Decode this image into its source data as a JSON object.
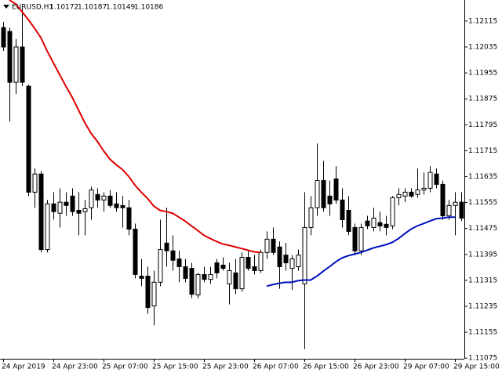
{
  "chart_data": {
    "type": "candlestick",
    "title": "EURUSD,H1",
    "header_values": [
      1.10172,
      1.10187,
      1.10149,
      1.10186
    ],
    "categories": [
      "24 Apr 2019",
      null,
      null,
      null,
      null,
      null,
      null,
      null,
      "24 Apr 23:00",
      null,
      null,
      null,
      null,
      null,
      null,
      null,
      "25 Apr 07:00",
      null,
      null,
      null,
      null,
      null,
      null,
      null,
      "25 Apr 15:00",
      null,
      null,
      null,
      null,
      null,
      null,
      null,
      "25 Apr 23:00",
      null,
      null,
      null,
      null,
      null,
      null,
      null,
      "26 Apr 07:00",
      null,
      null,
      null,
      null,
      null,
      null,
      null,
      "26 Apr 15:00",
      null,
      null,
      null,
      null,
      null,
      null,
      null,
      "26 Apr 23:00",
      null,
      null,
      null,
      null,
      null,
      null,
      null,
      "29 Apr 07:00",
      null,
      null,
      null,
      null,
      null,
      null,
      null,
      "29 Apr 15:00",
      null
    ],
    "open": [
      1.12095,
      1.12083,
      1.11926,
      1.12035,
      1.11914,
      1.11587,
      1.11643,
      1.1141,
      1.11551,
      1.11522,
      1.11556,
      1.11575,
      1.11531,
      1.11527,
      1.11539,
      1.1158,
      1.11563,
      1.11575,
      1.11551,
      1.11546,
      1.11539,
      1.11473,
      1.11328,
      1.11328,
      1.11236,
      1.11309,
      1.1143,
      1.11406,
      1.11381,
      1.11357,
      1.11352,
      1.1127,
      1.11333,
      1.11318,
      1.11369,
      1.11362,
      1.11304,
      1.11338,
      1.11289,
      1.11386,
      1.11357,
      1.11345,
      1.11401,
      1.11442,
      1.11418,
      1.11393,
      1.11352,
      1.11357,
      1.11304,
      1.11478,
      1.11539,
      1.11623,
      1.11575,
      1.11628,
      1.11563,
      1.11531,
      1.11478,
      1.11406,
      1.11498,
      1.11478,
      1.11493,
      1.11488,
      1.11483,
      1.1157,
      1.11575,
      1.11587,
      1.1158,
      1.11594,
      1.11599,
      1.11643,
      1.11611,
      1.11514,
      1.11546,
      1.11556
    ],
    "high": [
      1.12112,
      1.12095,
      1.12059,
      1.12156,
      1.11919,
      1.1166,
      1.11652,
      1.11563,
      1.11587,
      1.11599,
      1.11587,
      1.11599,
      1.11587,
      1.11563,
      1.11604,
      1.11599,
      1.11587,
      1.11594,
      1.11587,
      1.11575,
      1.11563,
      1.1149,
      1.11381,
      1.11357,
      1.11345,
      1.11502,
      1.11539,
      1.11454,
      1.11406,
      1.11381,
      1.11369,
      1.11338,
      1.11357,
      1.11357,
      1.11381,
      1.11386,
      1.11369,
      1.11381,
      1.11401,
      1.1141,
      1.11393,
      1.1141,
      1.11466,
      1.11478,
      1.11435,
      1.1143,
      1.11393,
      1.1141,
      1.11587,
      1.11575,
      1.11737,
      1.11684,
      1.11623,
      1.11667,
      1.11599,
      1.11575,
      1.1149,
      1.1149,
      1.11514,
      1.11539,
      1.11527,
      1.11514,
      1.11575,
      1.11599,
      1.11599,
      1.11599,
      1.1166,
      1.11648,
      1.11667,
      1.1166,
      1.11623,
      1.11563,
      1.11587,
      1.11587
    ],
    "low": [
      1.12023,
      1.11805,
      1.1189,
      1.11914,
      1.11575,
      1.11539,
      1.11401,
      1.11401,
      1.11502,
      1.11478,
      1.11514,
      1.11514,
      1.11454,
      1.11454,
      1.11502,
      1.11539,
      1.11527,
      1.11539,
      1.11527,
      1.11478,
      1.11454,
      1.11321,
      1.11297,
      1.11212,
      1.11176,
      1.11297,
      1.11357,
      1.11345,
      1.11309,
      1.11309,
      1.1126,
      1.1126,
      1.11309,
      1.11304,
      1.11321,
      1.11345,
      1.11241,
      1.11272,
      1.1128,
      1.11345,
      1.11333,
      1.11338,
      1.11381,
      1.11393,
      1.11289,
      1.11345,
      1.11285,
      1.11345,
      1.11103,
      1.11454,
      1.11514,
      1.11527,
      1.11514,
      1.11551,
      1.11478,
      1.11454,
      1.11393,
      1.11393,
      1.11473,
      1.11466,
      1.11466,
      1.11454,
      1.11473,
      1.11546,
      1.11556,
      1.1157,
      1.1157,
      1.1158,
      1.11587,
      1.11599,
      1.11502,
      1.11502,
      1.11454,
      1.11498
    ],
    "close": [
      1.12035,
      1.11926,
      1.12035,
      1.11926,
      1.11587,
      1.11643,
      1.1141,
      1.11551,
      1.11527,
      1.11556,
      1.11546,
      1.11527,
      1.11522,
      1.11536,
      1.11594,
      1.11563,
      1.11575,
      1.11546,
      1.11539,
      1.11539,
      1.11473,
      1.11333,
      1.11321,
      1.11231,
      1.11309,
      1.1141,
      1.11406,
      1.11377,
      1.11357,
      1.11321,
      1.11272,
      1.11333,
      1.11318,
      1.11333,
      1.11338,
      1.11352,
      1.11345,
      1.11289,
      1.11386,
      1.11352,
      1.11345,
      1.11401,
      1.11442,
      1.11401,
      1.11357,
      1.11369,
      1.11381,
      1.11393,
      1.11478,
      1.11539,
      1.11623,
      1.11539,
      1.11551,
      1.11563,
      1.11502,
      1.11466,
      1.11406,
      1.11478,
      1.11483,
      1.11507,
      1.11483,
      1.11478,
      1.1157,
      1.1158,
      1.11587,
      1.11575,
      1.11594,
      1.11599,
      1.11648,
      1.11611,
      1.11514,
      1.11546,
      1.11556,
      1.11507
    ],
    "up_color": "#ffffff",
    "down_color": "#000000",
    "series": [
      {
        "color": "#e00000",
        "values": [
          null,
          1.1218,
          1.12168,
          1.12144,
          1.1212,
          1.12093,
          1.12064,
          1.12023,
          1.11986,
          1.1195,
          1.11914,
          1.1188,
          1.11841,
          1.11802,
          1.11769,
          1.11744,
          1.11715,
          1.11689,
          1.11672,
          1.11657,
          1.11636,
          1.11609,
          1.11587,
          1.11568,
          1.11544,
          1.11531,
          1.11527,
          1.11522,
          1.1151,
          1.11498,
          1.11483,
          1.11469,
          1.11454,
          1.11444,
          1.11435,
          1.11427,
          1.11423,
          1.11418,
          1.11413,
          1.11408,
          1.11403,
          1.11401,
          null,
          null,
          null,
          null,
          null,
          null,
          null,
          null,
          null,
          null,
          null,
          null,
          null,
          null,
          null,
          null,
          null,
          null,
          null,
          null,
          null,
          null,
          null,
          null,
          null,
          null,
          null,
          null,
          null,
          null,
          null,
          null
        ]
      },
      {
        "color": "#0010c0",
        "values": [
          null,
          null,
          null,
          null,
          null,
          null,
          null,
          null,
          null,
          null,
          null,
          null,
          null,
          null,
          null,
          null,
          null,
          null,
          null,
          null,
          null,
          null,
          null,
          null,
          null,
          null,
          null,
          null,
          null,
          null,
          null,
          null,
          null,
          null,
          null,
          null,
          null,
          null,
          null,
          null,
          null,
          null,
          1.11297,
          1.11302,
          1.11306,
          1.11309,
          1.11309,
          1.11314,
          1.11316,
          1.11316,
          1.11328,
          1.11343,
          1.11357,
          1.11372,
          1.11384,
          1.11391,
          1.11396,
          1.11401,
          1.11408,
          1.11415,
          1.1142,
          1.11425,
          1.11432,
          1.11444,
          1.11459,
          1.11473,
          1.11483,
          1.1149,
          1.11498,
          1.11505,
          1.11507,
          1.1151,
          1.1151,
          null
        ]
      }
    ],
    "ylim": [
      1.11073,
      1.1218
    ],
    "yticks": [
      1.12115,
      1.12035,
      1.11955,
      1.11875,
      1.11795,
      1.11715,
      1.11635,
      1.11555,
      1.11475,
      1.11395,
      1.11315,
      1.11235,
      1.11155,
      1.11075
    ]
  }
}
